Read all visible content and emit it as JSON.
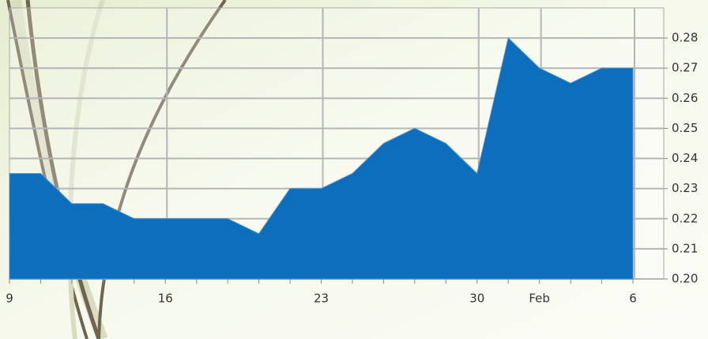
{
  "chart_data": {
    "type": "area",
    "color": "#0d6ebd",
    "grid": true,
    "categories": [
      "9",
      null,
      null,
      null,
      null,
      "16",
      null,
      null,
      null,
      null,
      "23",
      null,
      null,
      null,
      null,
      "30",
      null,
      "Feb",
      null,
      null,
      "6"
    ],
    "values": [
      0.235,
      0.235,
      0.225,
      0.225,
      0.22,
      0.22,
      0.22,
      0.22,
      0.215,
      0.23,
      0.23,
      0.235,
      0.245,
      0.25,
      0.245,
      0.235,
      0.28,
      0.27,
      0.265,
      0.27,
      0.27
    ],
    "ylim": [
      0.2,
      0.29
    ],
    "yticks": [
      {
        "value": 0.2,
        "label": "0.20"
      },
      0.21,
      0.22,
      0.23,
      0.24,
      0.25,
      0.26,
      0.27,
      0.28
    ]
  }
}
